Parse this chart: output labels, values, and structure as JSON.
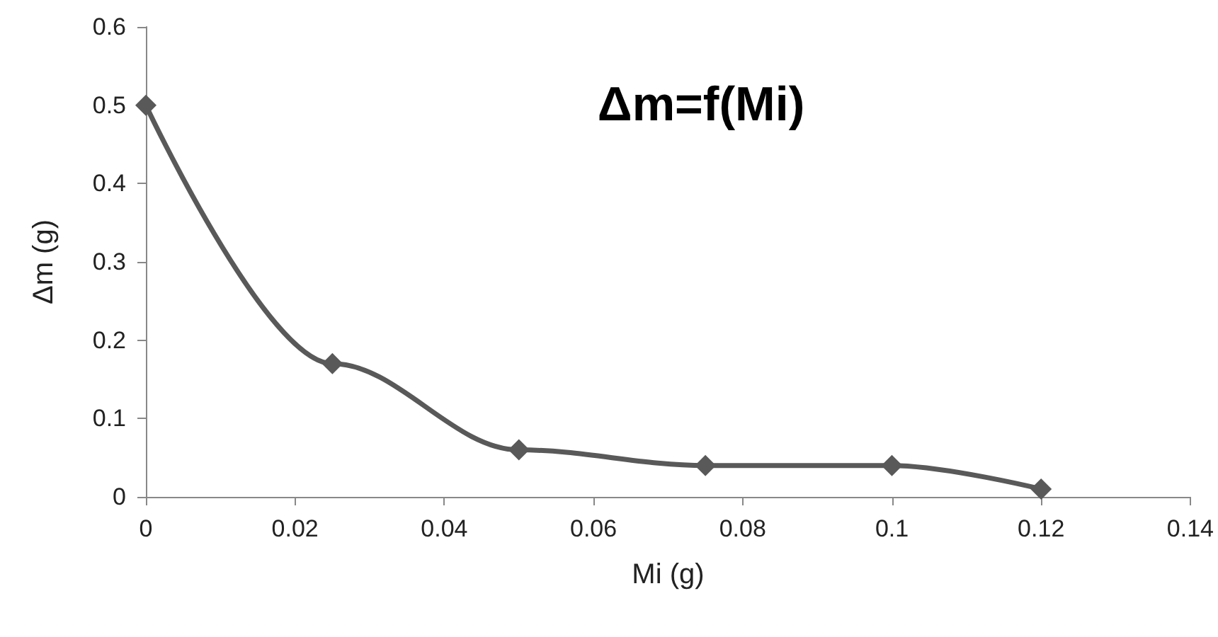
{
  "chart_data": {
    "type": "line",
    "title": "Δm=f(Mi)",
    "xlabel": "Mi (g)",
    "ylabel": "Δm (g)",
    "x": [
      0,
      0.025,
      0.05,
      0.075,
      0.1,
      0.12
    ],
    "series": [
      {
        "color": "#595959",
        "values": [
          0.5,
          0.17,
          0.06,
          0.04,
          0.04,
          0.01
        ]
      }
    ],
    "xlim": [
      0,
      0.14
    ],
    "xticks": [
      0,
      0.02,
      0.04,
      0.06,
      0.08,
      0.1,
      0.12,
      0.14
    ],
    "ylim": [
      0,
      0.6
    ],
    "yticks": [
      0,
      0.1,
      0.2,
      0.3,
      0.4,
      0.5,
      0.6
    ],
    "grid": false,
    "marker": "diamond",
    "line_style": "solid"
  }
}
